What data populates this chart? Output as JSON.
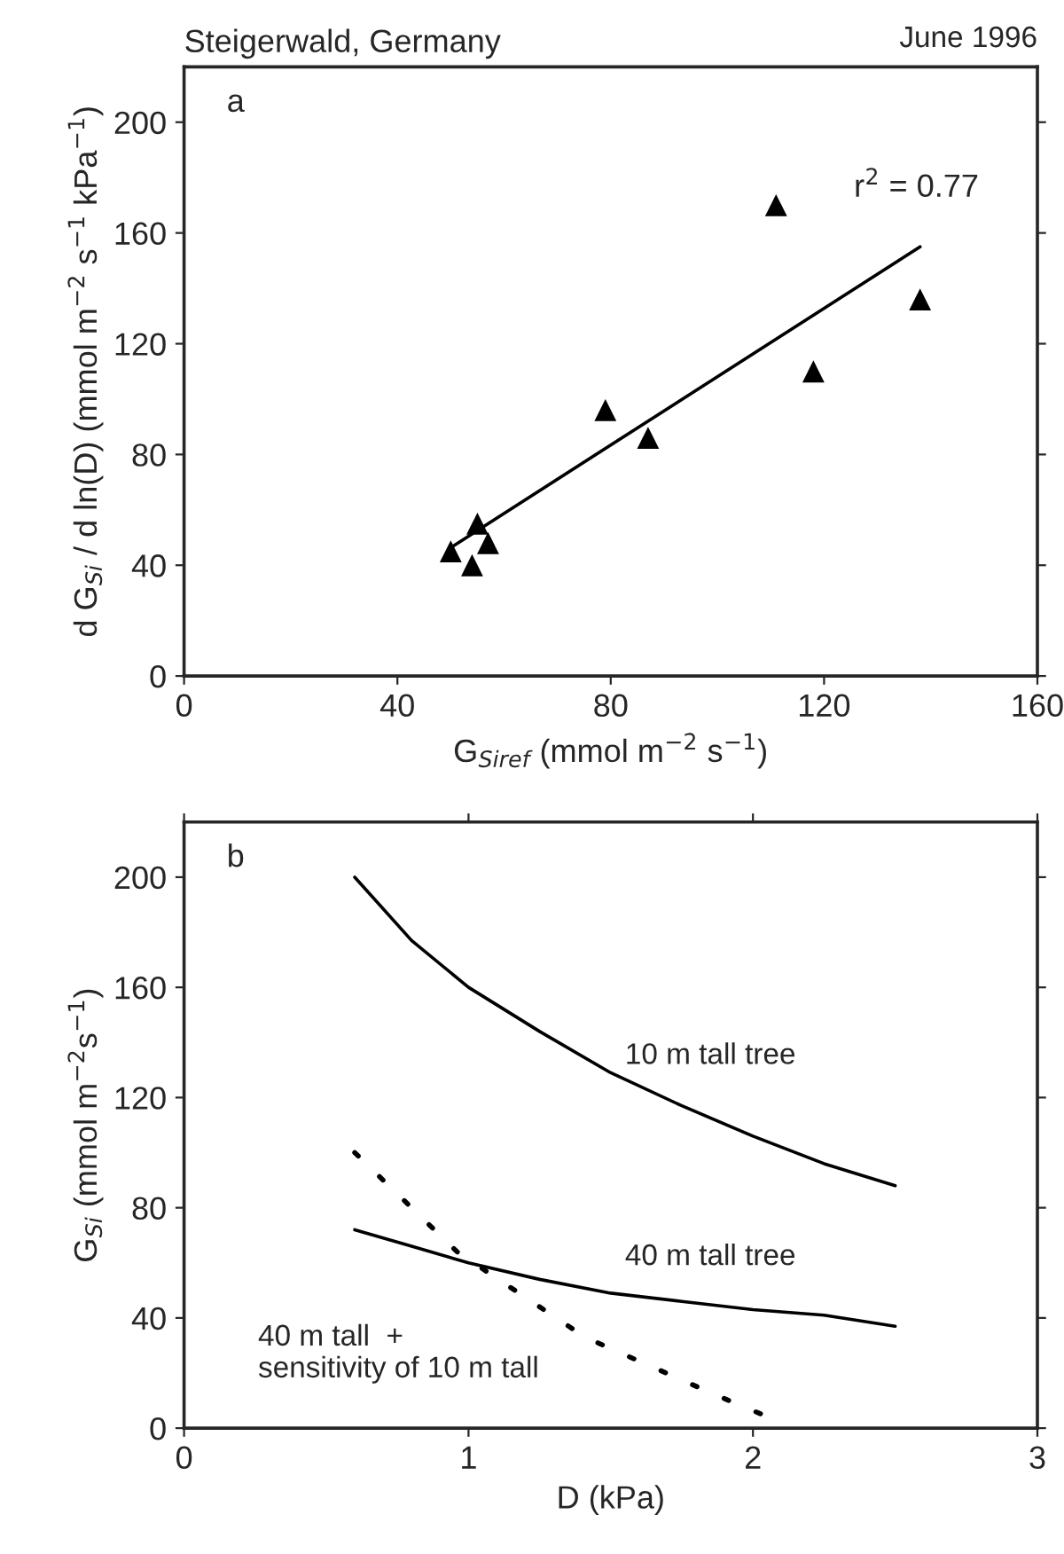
{
  "chart_data": [
    {
      "type": "scatter",
      "title": "Steigerwald, Germany",
      "annotations": [
        "June 1996",
        "a",
        "r$^{2}$ = 0.77"
      ],
      "xlabel": "G$_{Siref}$ (mmol m$^{−2}$ s$^{−1}$)",
      "ylabel": "d G$_{Si}$ / d ln(D) (mmol m$^{−2}$ s$^{−1}$ kPa$^{−1}$)",
      "xlim": [
        0,
        160
      ],
      "xticks": [
        0,
        40,
        80,
        120,
        160
      ],
      "ylim": [
        0,
        220
      ],
      "yticks": [
        0,
        40,
        80,
        120,
        160,
        200
      ],
      "grid": false,
      "legend": false,
      "marker": "triangle",
      "series": [
        {
          "color": "#000000",
          "x": [
            50,
            55,
            54,
            57,
            79,
            87,
            111,
            118,
            138
          ],
          "values": [
            45,
            55,
            40,
            48,
            96,
            86,
            170,
            110,
            136
          ]
        },
        {
          "type": "line",
          "color": "#000000",
          "marker": "none",
          "line_style": "solid",
          "x": [
            50.5,
            138
          ],
          "values": [
            47,
            155
          ]
        }
      ]
    },
    {
      "type": "line",
      "annotations": [
        "b"
      ],
      "xlabel": "D (kPa)",
      "ylabel": "G$_{Si}$ (mmol m$^{−2}$s$^{−1}$)",
      "xlim": [
        0,
        3
      ],
      "xticks": [
        0,
        1,
        2,
        3
      ],
      "ylim": [
        0,
        220
      ],
      "yticks": [
        0,
        40,
        80,
        120,
        160,
        200
      ],
      "grid": false,
      "legend": false,
      "marker": "none",
      "series": [
        {
          "name": "10 m tall tree",
          "color": "#000000",
          "line_style": "solid",
          "x": [
            0.6,
            0.8,
            1.0,
            1.25,
            1.5,
            1.75,
            2.0,
            2.25,
            2.5
          ],
          "values": [
            200,
            177,
            160,
            144,
            129,
            117,
            106,
            96,
            88
          ]
        },
        {
          "name": "40 m tall tree",
          "color": "#000000",
          "line_style": "solid",
          "x": [
            0.6,
            0.8,
            1.0,
            1.25,
            1.5,
            1.75,
            2.0,
            2.25,
            2.5
          ],
          "values": [
            72,
            66,
            60,
            54,
            49,
            46,
            43,
            41,
            37
          ]
        },
        {
          "name": "40 m tall  +\nsensitivity of 10 m tall",
          "color": "#000000",
          "line_style": "dotted",
          "x": [
            0.6,
            0.96,
            1.41,
            1.87,
            2.1
          ],
          "values": [
            100,
            64,
            33,
            12,
            2
          ]
        }
      ]
    }
  ]
}
